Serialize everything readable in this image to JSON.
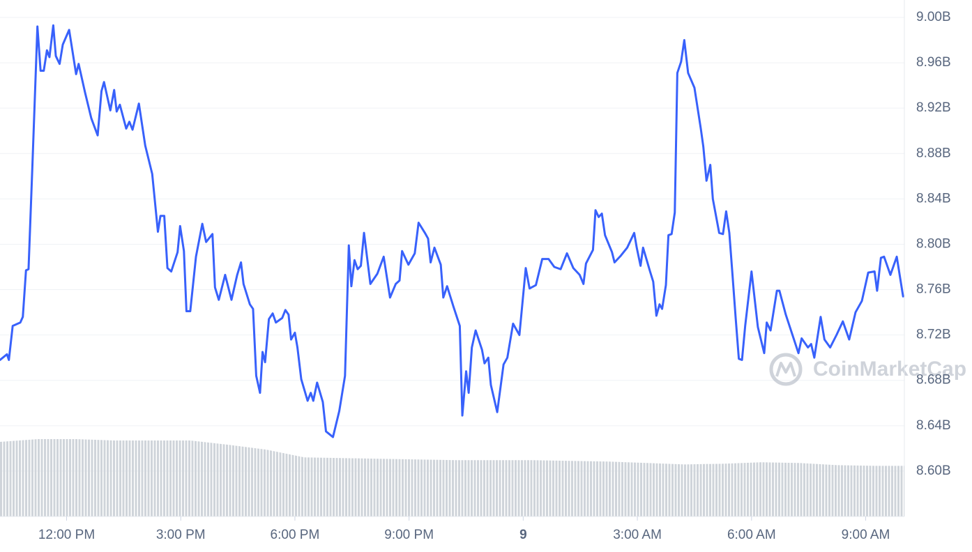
{
  "chart_data": {
    "type": "line",
    "color": "#3861fb",
    "grid": true,
    "xlim": [
      615,
      2041
    ],
    "ylim": [
      8.56,
      9.01
    ],
    "xticks": [
      {
        "value": 720,
        "label": "12:00 PM"
      },
      {
        "value": 900,
        "label": "3:00 PM"
      },
      {
        "value": 1080,
        "label": "6:00 PM"
      },
      {
        "value": 1260,
        "label": "9:00 PM"
      },
      {
        "value": 1440,
        "label": "9"
      },
      {
        "value": 1620,
        "label": "3:00 AM"
      },
      {
        "value": 1800,
        "label": "6:00 AM"
      },
      {
        "value": 1980,
        "label": "9:00 AM"
      }
    ],
    "yticks": [
      {
        "value": 8.6,
        "label": "8.60B"
      },
      {
        "value": 8.64,
        "label": "8.64B"
      },
      {
        "value": 8.68,
        "label": "8.68B"
      },
      {
        "value": 8.72,
        "label": "8.72B"
      },
      {
        "value": 8.76,
        "label": "8.76B"
      },
      {
        "value": 8.8,
        "label": "8.80B"
      },
      {
        "value": 8.84,
        "label": "8.84B"
      },
      {
        "value": 8.88,
        "label": "8.88B"
      },
      {
        "value": 8.92,
        "label": "8.92B"
      },
      {
        "value": 8.96,
        "label": "8.96B"
      },
      {
        "value": 9.0,
        "label": "9.00B"
      }
    ],
    "watermark": "CoinMarketCap",
    "x": [
      615,
      626,
      629,
      635,
      647,
      651,
      656,
      660,
      666,
      674,
      679,
      684,
      689,
      693,
      699,
      703,
      709,
      714,
      724,
      735,
      739,
      749,
      759,
      769,
      775,
      779,
      789,
      795,
      799,
      804,
      814,
      819,
      824,
      834,
      844,
      855,
      864,
      868,
      874,
      879,
      885,
      895,
      899,
      905,
      909,
      915,
      924,
      934,
      940,
      950,
      954,
      960,
      970,
      980,
      989,
      995,
      999,
      1009,
      1014,
      1019,
      1025,
      1029,
      1033,
      1039,
      1045,
      1050,
      1060,
      1065,
      1070,
      1074,
      1080,
      1084,
      1090,
      1100,
      1105,
      1109,
      1115,
      1124,
      1129,
      1140,
      1150,
      1159,
      1165,
      1169,
      1174,
      1179,
      1184,
      1189,
      1199,
      1210,
      1220,
      1230,
      1239,
      1245,
      1249,
      1259,
      1269,
      1275,
      1285,
      1290,
      1294,
      1300,
      1310,
      1314,
      1320,
      1330,
      1340,
      1344,
      1350,
      1354,
      1359,
      1365,
      1375,
      1379,
      1385,
      1389,
      1399,
      1409,
      1415,
      1424,
      1434,
      1444,
      1450,
      1460,
      1470,
      1480,
      1489,
      1499,
      1509,
      1519,
      1529,
      1535,
      1539,
      1550,
      1554,
      1559,
      1564,
      1569,
      1580,
      1584,
      1594,
      1604,
      1615,
      1619,
      1625,
      1629,
      1640,
      1645,
      1650,
      1655,
      1659,
      1665,
      1669,
      1674,
      1679,
      1683,
      1689,
      1694,
      1700,
      1710,
      1720,
      1724,
      1729,
      1735,
      1739,
      1749,
      1755,
      1760,
      1765,
      1770,
      1775,
      1780,
      1785,
      1790,
      1800,
      1810,
      1820,
      1824,
      1830,
      1840,
      1844,
      1854,
      1864,
      1874,
      1879,
      1889,
      1894,
      1899,
      1909,
      1915,
      1924,
      1934,
      1944,
      1954,
      1964,
      1974,
      1984,
      1994,
      1998,
      2004,
      2009,
      2019,
      2029,
      2039
    ],
    "values": [
      8.698,
      8.703,
      8.698,
      8.728,
      8.731,
      8.736,
      8.777,
      8.778,
      8.868,
      8.992,
      8.953,
      8.953,
      8.971,
      8.965,
      8.993,
      8.966,
      8.959,
      8.976,
      8.989,
      8.95,
      8.959,
      8.934,
      8.911,
      8.896,
      8.935,
      8.943,
      8.918,
      8.936,
      8.917,
      8.923,
      8.902,
      8.908,
      8.901,
      8.924,
      8.887,
      8.862,
      8.811,
      8.825,
      8.825,
      8.779,
      8.776,
      8.793,
      8.816,
      8.794,
      8.741,
      8.741,
      8.789,
      8.818,
      8.802,
      8.809,
      8.762,
      8.751,
      8.773,
      8.751,
      8.773,
      8.784,
      8.765,
      8.747,
      8.743,
      8.684,
      8.669,
      8.705,
      8.696,
      8.734,
      8.739,
      8.731,
      8.735,
      8.742,
      8.738,
      8.716,
      8.722,
      8.709,
      8.681,
      8.662,
      8.669,
      8.662,
      8.678,
      8.661,
      8.635,
      8.63,
      8.653,
      8.684,
      8.799,
      8.763,
      8.786,
      8.778,
      8.781,
      8.81,
      8.765,
      8.774,
      8.789,
      8.753,
      8.765,
      8.768,
      8.794,
      8.782,
      8.792,
      8.819,
      8.81,
      8.805,
      8.784,
      8.797,
      8.782,
      8.753,
      8.763,
      8.745,
      8.728,
      8.649,
      8.688,
      8.669,
      8.709,
      8.724,
      8.707,
      8.695,
      8.7,
      8.676,
      8.652,
      8.694,
      8.7,
      8.73,
      8.72,
      8.779,
      8.761,
      8.764,
      8.787,
      8.787,
      8.78,
      8.778,
      8.792,
      8.779,
      8.773,
      8.765,
      8.783,
      8.795,
      8.83,
      8.824,
      8.827,
      8.808,
      8.793,
      8.784,
      8.79,
      8.797,
      8.81,
      8.797,
      8.781,
      8.797,
      8.776,
      8.767,
      8.737,
      8.747,
      8.743,
      8.764,
      8.808,
      8.809,
      8.828,
      8.951,
      8.961,
      8.98,
      8.951,
      8.938,
      8.902,
      8.886,
      8.856,
      8.87,
      8.84,
      8.81,
      8.809,
      8.829,
      8.81,
      8.773,
      8.735,
      8.699,
      8.698,
      8.728,
      8.776,
      8.727,
      8.704,
      8.731,
      8.724,
      8.759,
      8.759,
      8.738,
      8.721,
      8.704,
      8.717,
      8.709,
      8.712,
      8.7,
      8.736,
      8.716,
      8.709,
      8.72,
      8.732,
      8.716,
      8.74,
      8.75,
      8.775,
      8.776,
      8.759,
      8.788,
      8.789,
      8.773,
      8.789,
      8.754
    ],
    "volume": {
      "color": "#cfd4da",
      "ylim": [
        0,
        110
      ],
      "x": [
        615,
        675,
        735,
        795,
        855,
        915,
        975,
        1035,
        1095,
        1155,
        1215,
        1275,
        1335,
        1395,
        1455,
        1515,
        1575,
        1635,
        1695,
        1755,
        1815,
        1875,
        1935,
        1995,
        2041
      ],
      "values": [
        106,
        110,
        110,
        108,
        108,
        108,
        102,
        95,
        84,
        83,
        82,
        81,
        80,
        80,
        80,
        79,
        78,
        76,
        74,
        75,
        77,
        76,
        73,
        72,
        72
      ]
    }
  }
}
